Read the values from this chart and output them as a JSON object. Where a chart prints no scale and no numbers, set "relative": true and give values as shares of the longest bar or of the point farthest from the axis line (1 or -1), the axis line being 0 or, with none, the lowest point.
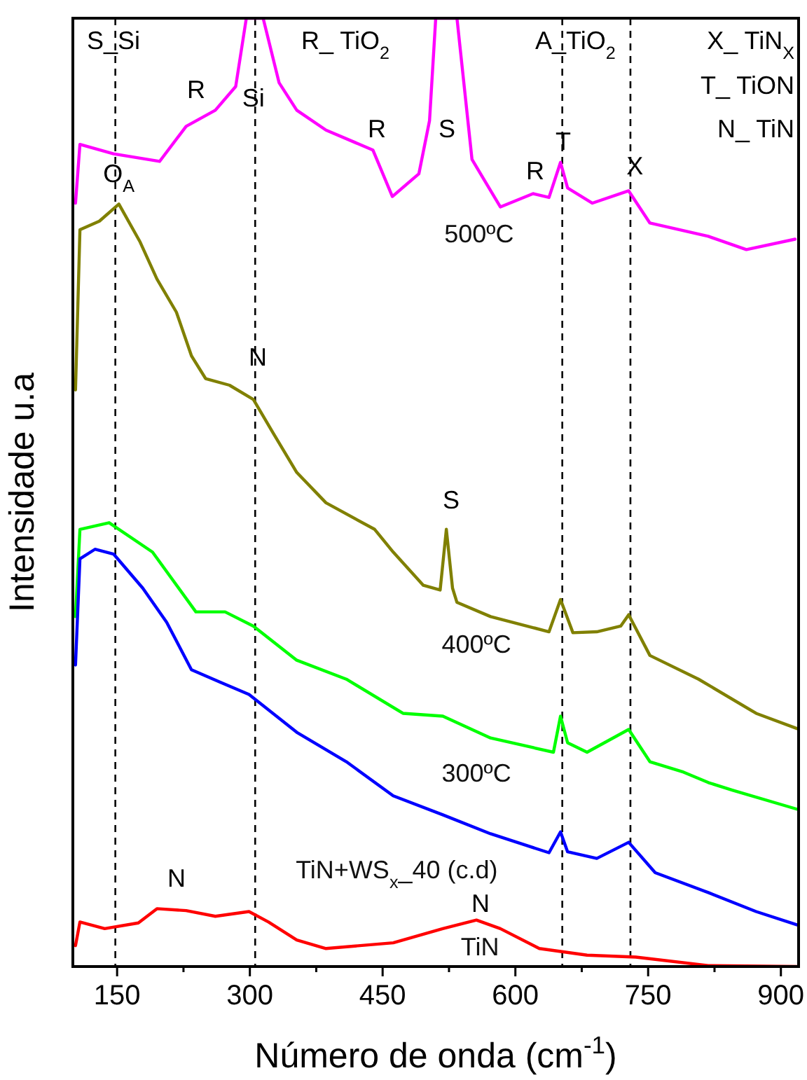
{
  "chart_data": {
    "type": "line",
    "relative": true,
    "xlabel": "Número de onda (cm$^{-1}$)",
    "ylabel": "Intensidade u.a",
    "xlim": [
      100,
      920
    ],
    "xticks": [
      150,
      {
        "value": 225,
        "label": null
      },
      300,
      {
        "value": 375,
        "label": null
      },
      450,
      {
        "value": 525,
        "label": null
      },
      600,
      {
        "value": 675,
        "label": null
      },
      750,
      {
        "value": 825,
        "label": null
      },
      900
    ],
    "legend": false,
    "grid": false,
    "marker": "none",
    "line_style": "solid",
    "series": [
      {
        "name": "500ºC",
        "color": "#ff00ff",
        "x": [
          103,
          108,
          146,
          198,
          228,
          261,
          284,
          296,
          315,
          333,
          353,
          386,
          439,
          461,
          491,
          503,
          510,
          534,
          551,
          583,
          620,
          638,
          651,
          659,
          687,
          728,
          752,
          818,
          861,
          916
        ],
        "values": [
          0.805,
          0.867,
          0.857,
          0.849,
          0.886,
          0.903,
          0.928,
          1,
          1,
          0.932,
          0.903,
          0.882,
          0.861,
          0.812,
          0.836,
          0.892,
          1,
          1,
          0.851,
          0.801,
          0.815,
          0.811,
          0.848,
          0.821,
          0.805,
          0.818,
          0.784,
          0.77,
          0.756,
          0.767
        ]
      },
      {
        "name": "400ºC",
        "color": "#808000",
        "x": [
          103,
          108,
          130,
          152,
          176,
          195,
          217,
          234,
          250,
          277,
          304,
          326,
          353,
          386,
          441,
          462,
          496,
          515,
          522,
          529,
          534,
          572,
          638,
          651,
          665,
          692,
          719,
          728,
          752,
          807,
          872,
          918
        ],
        "values": [
          0.608,
          0.777,
          0.786,
          0.804,
          0.764,
          0.725,
          0.69,
          0.644,
          0.62,
          0.613,
          0.598,
          0.563,
          0.521,
          0.489,
          0.461,
          0.437,
          0.402,
          0.397,
          0.461,
          0.399,
          0.384,
          0.369,
          0.353,
          0.387,
          0.352,
          0.353,
          0.359,
          0.371,
          0.328,
          0.303,
          0.267,
          0.251
        ]
      },
      {
        "name": "300ºC",
        "color": "#00ff00",
        "x": [
          103,
          108,
          141,
          190,
          239,
          272,
          304,
          353,
          409,
          473,
          518,
          572,
          643,
          651,
          659,
          681,
          728,
          752,
          790,
          818,
          845,
          918
        ],
        "values": [
          0.369,
          0.461,
          0.468,
          0.437,
          0.374,
          0.374,
          0.359,
          0.323,
          0.303,
          0.267,
          0.264,
          0.241,
          0.226,
          0.264,
          0.236,
          0.226,
          0.25,
          0.216,
          0.205,
          0.194,
          0.186,
          0.166
        ]
      },
      {
        "name": "TiN+WS$_{x}$_40 (c.d)",
        "color": "#0000ff",
        "x": [
          103,
          108,
          125,
          146,
          179,
          206,
          234,
          266,
          299,
          353,
          409,
          462,
          518,
          572,
          638,
          651,
          659,
          692,
          728,
          758,
          818,
          872,
          918
        ],
        "values": [
          0.318,
          0.43,
          0.44,
          0.435,
          0.399,
          0.363,
          0.313,
          0.3,
          0.287,
          0.247,
          0.216,
          0.18,
          0.16,
          0.14,
          0.12,
          0.142,
          0.121,
          0.114,
          0.131,
          0.099,
          0.078,
          0.058,
          0.044
        ]
      },
      {
        "name": "TiN",
        "color": "#ff0000",
        "x": [
          103,
          108,
          136,
          174,
          195,
          228,
          261,
          299,
          321,
          353,
          386,
          462,
          518,
          556,
          583,
          627,
          681,
          736,
          818,
          918
        ],
        "values": [
          0.022,
          0.047,
          0.04,
          0.046,
          0.061,
          0.059,
          0.053,
          0.058,
          0.047,
          0.028,
          0.019,
          0.025,
          0.04,
          0.049,
          0.04,
          0.019,
          0.012,
          0.01,
          0.001,
          0
        ]
      }
    ],
    "ref_lines": [
      {
        "axis": "x",
        "value": 148,
        "line_style": "dashed",
        "color": "#000000"
      },
      {
        "axis": "x",
        "value": 306,
        "line_style": "dashed",
        "color": "#000000"
      },
      {
        "axis": "x",
        "value": 653,
        "line_style": "dashed",
        "color": "#000000"
      },
      {
        "axis": "x",
        "value": 730,
        "line_style": "dashed",
        "color": "#000000"
      }
    ],
    "annotations": [
      "S_Si",
      "R_ TiO$_{2}$",
      "A_TiO$_{2}$",
      "X_ TiN$_{X}$",
      "T_ TiON",
      "N_ TiN",
      "R",
      "R",
      "S",
      "R",
      "S",
      "N",
      "N",
      {
        "text": "Si",
        "x": 304,
        "y": 0.907
      },
      {
        "text": "T",
        "x": 654,
        "y": 0.861
      },
      {
        "text": "X",
        "x": 735,
        "y": 0.835
      },
      {
        "text": "O$_{A}$",
        "x": 152,
        "y": 0.827
      },
      {
        "text": "N",
        "x": 309,
        "y": 0.634
      }
    ]
  }
}
